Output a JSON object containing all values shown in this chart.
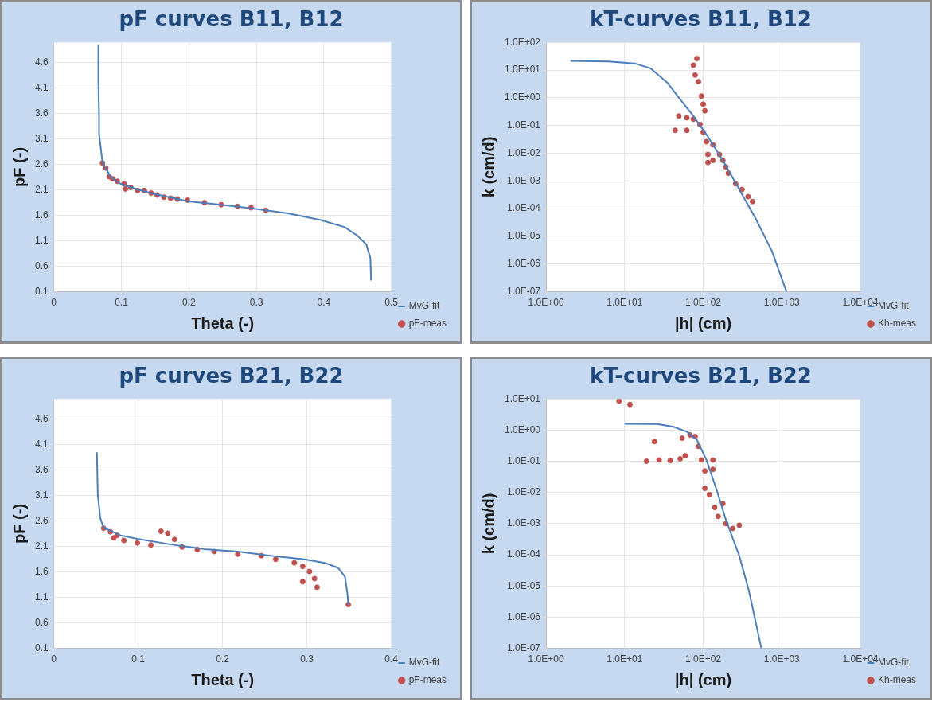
{
  "chart_data": [
    {
      "type": "line",
      "title": "pF curves B11, B12",
      "xlabel": "Theta (-)",
      "ylabel": "pF (-)",
      "xlim": [
        0,
        0.5
      ],
      "xticks": [
        0,
        0.1,
        0.2,
        0.3,
        0.4,
        0.5
      ],
      "ylim": [
        0.1,
        5.0
      ],
      "yticks": [
        0.1,
        0.6,
        1.1,
        1.6,
        2.1,
        2.6,
        3.1,
        3.6,
        4.1,
        4.6
      ],
      "grid": true,
      "legend": "right",
      "series": [
        {
          "name": "MvG-fit",
          "type": "line",
          "color": "#4a7ebb",
          "marker": "none",
          "line_style": "solid",
          "x": [
            0.066,
            0.066,
            0.067,
            0.067,
            0.072,
            0.084,
            0.099,
            0.124,
            0.149,
            0.198,
            0.248,
            0.297,
            0.347,
            0.396,
            0.431,
            0.45,
            0.463,
            0.469,
            0.47
          ],
          "values": [
            4.95,
            4.2,
            3.54,
            3.2,
            2.65,
            2.36,
            2.22,
            2.11,
            2.02,
            1.88,
            1.81,
            1.73,
            1.64,
            1.51,
            1.37,
            1.2,
            1.03,
            0.76,
            0.32
          ]
        },
        {
          "name": "pF-meas",
          "type": "scatter",
          "color": "#c0504d",
          "marker": "circle",
          "x": [
            0.072,
            0.077,
            0.082,
            0.087,
            0.094,
            0.104,
            0.106,
            0.114,
            0.124,
            0.134,
            0.144,
            0.153,
            0.163,
            0.173,
            0.183,
            0.198,
            0.223,
            0.248,
            0.272,
            0.292,
            0.314
          ],
          "values": [
            2.63,
            2.53,
            2.36,
            2.32,
            2.27,
            2.22,
            2.12,
            2.15,
            2.09,
            2.09,
            2.04,
            2.0,
            1.96,
            1.94,
            1.92,
            1.9,
            1.85,
            1.81,
            1.78,
            1.75,
            1.7
          ]
        }
      ]
    },
    {
      "type": "line",
      "title": "kT-curves B11, B12",
      "xlabel": "|h| (cm)",
      "ylabel": "k (cm/d)",
      "log": "xy",
      "xlim": [
        1,
        10000
      ],
      "xticks": [
        {
          "value": 1,
          "label": "1.0E+00"
        },
        {
          "value": 10,
          "label": "1.0E+01"
        },
        {
          "value": 100,
          "label": "1.0E+02"
        },
        {
          "value": 1000,
          "label": "1.0E+03"
        },
        {
          "value": 10000,
          "label": "1.0E+04"
        }
      ],
      "ylim": [
        1e-07,
        100
      ],
      "yticks": [
        {
          "value": 1e-07,
          "label": "1.0E-07"
        },
        {
          "value": 1e-06,
          "label": "1.0E-06"
        },
        {
          "value": 1e-05,
          "label": "1.0E-05"
        },
        {
          "value": 0.0001,
          "label": "1.0E-04"
        },
        {
          "value": 0.001,
          "label": "1.0E-03"
        },
        {
          "value": 0.01,
          "label": "1.0E-02"
        },
        {
          "value": 0.1,
          "label": "1.0E-01"
        },
        {
          "value": 1,
          "label": "1.0E+00"
        },
        {
          "value": 10,
          "label": "1.0E+01"
        },
        {
          "value": 100,
          "label": "1.0E+02"
        }
      ],
      "grid": true,
      "legend": "right",
      "series": [
        {
          "name": "MvG-fit",
          "type": "line",
          "color": "#4a7ebb",
          "marker": "none",
          "line_style": "solid",
          "x": [
            2.05,
            6.2,
            13.3,
            21.5,
            35,
            51,
            75,
            110,
            178,
            288,
            465,
            750,
            1150
          ],
          "values": [
            21.6,
            20.4,
            17.4,
            11.5,
            3.5,
            0.87,
            0.22,
            0.047,
            0.0055,
            0.00049,
            4.4e-05,
            2.9e-06,
            1e-07
          ]
        },
        {
          "name": "Kh-meas",
          "type": "scatter",
          "color": "#c0504d",
          "marker": "circle",
          "x": [
            83,
            75,
            79,
            87,
            95,
            100,
            105,
            44,
            49,
            62,
            62,
            75,
            91,
            100,
            110,
            115,
            115,
            133,
            133,
            161,
            178,
            194,
            209,
            259,
            312,
            372,
            424
          ],
          "values": [
            26,
            15,
            6.6,
            3.8,
            1.15,
            0.59,
            0.34,
            0.067,
            0.22,
            0.19,
            0.067,
            0.17,
            0.11,
            0.058,
            0.026,
            0.009,
            0.0046,
            0.0055,
            0.02,
            0.009,
            0.0055,
            0.0032,
            0.0019,
            0.00079,
            0.00049,
            0.00027,
            0.00018
          ]
        }
      ]
    },
    {
      "type": "line",
      "title": "pF curves B21, B22",
      "xlabel": "Theta (-)",
      "ylabel": "pF (-)",
      "xlim": [
        0,
        0.4
      ],
      "xticks": [
        0,
        0.1,
        0.2,
        0.3,
        0.4
      ],
      "ylim": [
        0.1,
        5.0
      ],
      "yticks": [
        0.1,
        0.6,
        1.1,
        1.6,
        2.1,
        2.6,
        3.1,
        3.6,
        4.1,
        4.6
      ],
      "grid": true,
      "legend": "right",
      "series": [
        {
          "name": "MvG-fit",
          "type": "line",
          "color": "#4a7ebb",
          "marker": "none",
          "line_style": "solid",
          "x": [
            0.051,
            0.052,
            0.055,
            0.059,
            0.079,
            0.099,
            0.139,
            0.178,
            0.218,
            0.257,
            0.297,
            0.321,
            0.337,
            0.345,
            0.348,
            0.349
          ],
          "values": [
            3.95,
            3.14,
            2.66,
            2.47,
            2.32,
            2.25,
            2.14,
            2.05,
            2.0,
            1.92,
            1.85,
            1.78,
            1.68,
            1.51,
            1.17,
            0.96
          ]
        },
        {
          "name": "pF-meas",
          "type": "scatter",
          "color": "#c0504d",
          "marker": "circle",
          "x": [
            0.059,
            0.067,
            0.075,
            0.071,
            0.083,
            0.099,
            0.115,
            0.127,
            0.135,
            0.143,
            0.152,
            0.17,
            0.19,
            0.218,
            0.246,
            0.263,
            0.285,
            0.295,
            0.303,
            0.309,
            0.295,
            0.312,
            0.349
          ],
          "values": [
            2.46,
            2.39,
            2.32,
            2.27,
            2.22,
            2.17,
            2.13,
            2.4,
            2.36,
            2.24,
            2.09,
            2.04,
            2.0,
            1.95,
            1.92,
            1.85,
            1.78,
            1.71,
            1.61,
            1.47,
            1.41,
            1.3,
            0.96
          ]
        }
      ]
    },
    {
      "type": "line",
      "title": "kT-curves B21, B22",
      "xlabel": "|h| (cm)",
      "ylabel": "k (cm/d)",
      "log": "xy",
      "xlim": [
        1,
        10000
      ],
      "xticks": [
        {
          "value": 1,
          "label": "1.0E+00"
        },
        {
          "value": 10,
          "label": "1.0E+01"
        },
        {
          "value": 100,
          "label": "1.0E+02"
        },
        {
          "value": 1000,
          "label": "1.0E+03"
        },
        {
          "value": 10000,
          "label": "1.0E+04"
        }
      ],
      "ylim": [
        1e-07,
        10
      ],
      "yticks": [
        {
          "value": 1e-07,
          "label": "1.0E-07"
        },
        {
          "value": 1e-06,
          "label": "1.0E-06"
        },
        {
          "value": 1e-05,
          "label": "1.0E-05"
        },
        {
          "value": 0.0001,
          "label": "1.0E-04"
        },
        {
          "value": 0.001,
          "label": "1.0E-03"
        },
        {
          "value": 0.01,
          "label": "1.0E-02"
        },
        {
          "value": 0.1,
          "label": "1.0E-01"
        },
        {
          "value": 1,
          "label": "1.0E+00"
        },
        {
          "value": 10,
          "label": "1.0E+01"
        }
      ],
      "grid": true,
      "legend": "right",
      "series": [
        {
          "name": "MvG-fit",
          "type": "line",
          "color": "#4a7ebb",
          "marker": "none",
          "line_style": "solid",
          "x": [
            10,
            26,
            42,
            62,
            83,
            110,
            147,
            195,
            288,
            383,
            550
          ],
          "values": [
            1.6,
            1.57,
            1.27,
            0.89,
            0.49,
            0.11,
            0.013,
            0.0013,
            9.3e-05,
            6.8e-06,
            1e-07
          ]
        },
        {
          "name": "Kh-meas",
          "type": "scatter",
          "color": "#c0504d",
          "marker": "circle",
          "x": [
            8.5,
            11.7,
            24,
            19,
            27.5,
            38,
            51,
            59,
            54,
            68,
            79,
            87,
            95,
            105,
            105,
            133,
            133,
            120,
            140,
            155,
            178,
            195,
            237,
            288
          ],
          "values": [
            8.5,
            6.6,
            0.43,
            0.1,
            0.11,
            0.105,
            0.12,
            0.15,
            0.55,
            0.7,
            0.62,
            0.3,
            0.11,
            0.049,
            0.0135,
            0.11,
            0.055,
            0.0085,
            0.0033,
            0.0017,
            0.0044,
            0.001,
            0.0007,
            0.00089
          ]
        }
      ]
    }
  ]
}
